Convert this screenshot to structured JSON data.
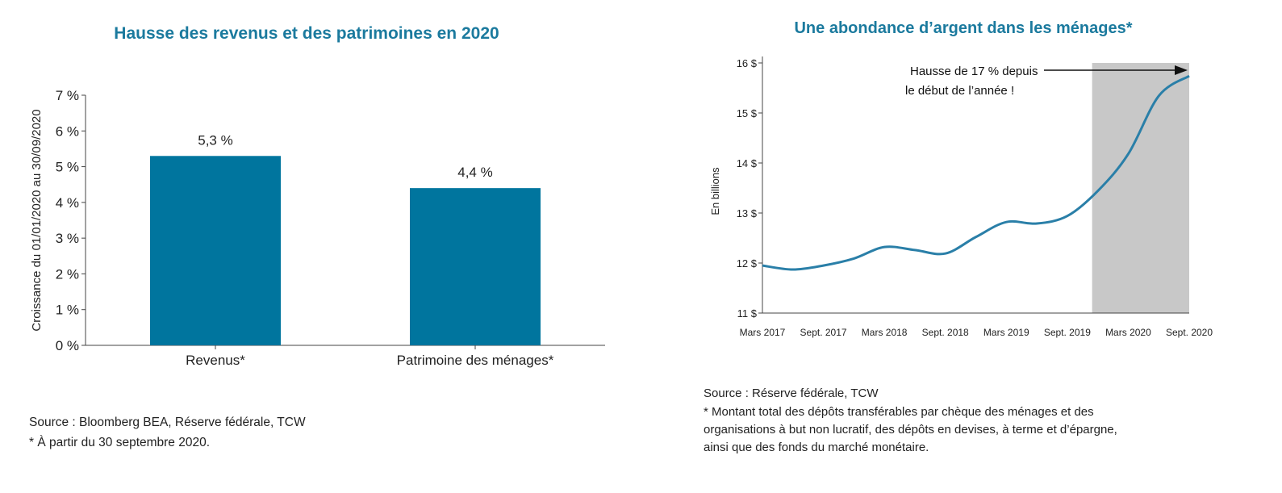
{
  "chart_data": [
    {
      "type": "bar",
      "title": "Hausse des revenus et des patrimoines en 2020",
      "ylabel": "Croissance du 01/01/2020 au 30/09/2020",
      "xlabel": "",
      "categories": [
        "Revenus*",
        "Patrimoine des ménages*"
      ],
      "values": [
        5.3,
        4.4
      ],
      "data_labels": [
        "5,3 %",
        "4,4 %"
      ],
      "ylim": [
        0,
        7
      ],
      "yticks": [
        0,
        1,
        2,
        3,
        4,
        5,
        6,
        7
      ],
      "ytick_labels": [
        "0 %",
        "1 %",
        "2 %",
        "3 %",
        "4 %",
        "5 %",
        "6 %",
        "7 %"
      ],
      "bar_color": "#00759e",
      "grid": false,
      "source": "Source : Bloomberg BEA, Réserve fédérale, TCW",
      "footnote": "* À partir du 30 septembre 2020."
    },
    {
      "type": "line",
      "title": "Une abondance d’argent dans les ménages*",
      "ylabel": "En billions",
      "xlabel": "",
      "x": [
        "Mars 2017",
        "Juin 2017",
        "Sept. 2017",
        "Déc. 2017",
        "Mars 2018",
        "Juin 2018",
        "Sept. 2018",
        "Déc. 2018",
        "Mars 2019",
        "Juin 2019",
        "Sept. 2019",
        "Déc. 2019",
        "Mars 2020",
        "Juin 2020",
        "Sept. 2020"
      ],
      "xtick_labels": [
        "Mars 2017",
        "Sept. 2017",
        "Mars 2018",
        "Sept. 2018",
        "Mars 2019",
        "Sept. 2019",
        "Mars 2020",
        "Sept. 2020"
      ],
      "series": [
        {
          "values": [
            11.95,
            11.87,
            11.95,
            12.09,
            12.32,
            12.26,
            12.19,
            12.52,
            12.82,
            12.79,
            12.94,
            13.44,
            14.18,
            15.34,
            15.74
          ],
          "color": "#2a7fa8"
        }
      ],
      "ylim": [
        11,
        16
      ],
      "yticks": [
        11,
        12,
        13,
        14,
        15,
        16
      ],
      "ytick_labels": [
        "11 $",
        "12 $",
        "13 $",
        "14 $",
        "15 $",
        "16 $"
      ],
      "shaded_region": {
        "from": "Déc. 2019",
        "to": "Sept. 2020",
        "color": "#c8c8c8"
      },
      "annotation": {
        "lines": [
          "Hausse de 17 % depuis",
          "le début de l’année !"
        ]
      },
      "grid": false,
      "source": "Source : Réserve fédérale, TCW",
      "footnote": [
        "* Montant total des dépôts transférables par chèque des ménages et des",
        "organisations à but non lucratif, des dépôts en devises, à terme et d’épargne,",
        "ainsi que des fonds du marché monétaire."
      ]
    }
  ]
}
